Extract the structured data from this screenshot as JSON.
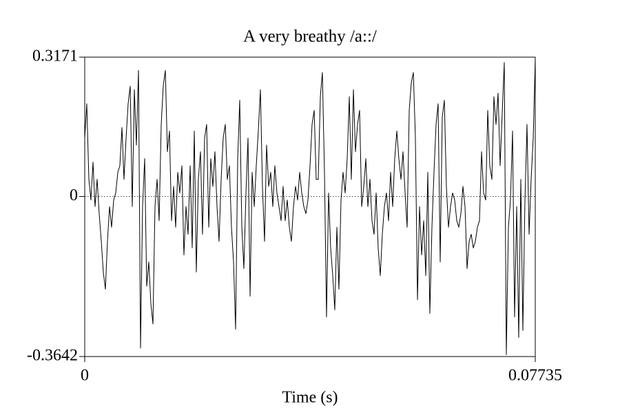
{
  "chart_data": {
    "type": "line",
    "title": "A very breathy /a::/",
    "x_label": "Time (s)",
    "color": "#000000",
    "zero_line": true,
    "xlim": [
      0,
      0.07735
    ],
    "ylim": [
      -0.3642,
      0.3171
    ],
    "xticks": [
      0,
      0.07735
    ],
    "yticks": [
      -0.3642,
      0,
      0.3171
    ],
    "x": [
      0,
      0.00035,
      0.00071,
      0.00106,
      0.00142,
      0.00177,
      0.00213,
      0.00248,
      0.00284,
      0.00319,
      0.00355,
      0.0039,
      0.00426,
      0.00461,
      0.00497,
      0.00532,
      0.00568,
      0.00603,
      0.00639,
      0.00674,
      0.0071,
      0.00745,
      0.00781,
      0.00816,
      0.00852,
      0.00887,
      0.00923,
      0.00958,
      0.00993,
      0.01029,
      0.01064,
      0.011,
      0.01135,
      0.01171,
      0.01206,
      0.01242,
      0.01277,
      0.01313,
      0.01348,
      0.01384,
      0.01419,
      0.01455,
      0.0149,
      0.01526,
      0.01561,
      0.01597,
      0.01632,
      0.01668,
      0.01703,
      0.01739,
      0.01774,
      0.0181,
      0.01845,
      0.01881,
      0.01916,
      0.01951,
      0.01987,
      0.02022,
      0.02058,
      0.02093,
      0.02129,
      0.02164,
      0.022,
      0.02235,
      0.02271,
      0.02306,
      0.02342,
      0.02377,
      0.02413,
      0.02448,
      0.02484,
      0.02519,
      0.02555,
      0.0259,
      0.02626,
      0.02661,
      0.02697,
      0.02732,
      0.02768,
      0.02803,
      0.02839,
      0.02874,
      0.0291,
      0.02945,
      0.0298,
      0.03016,
      0.03051,
      0.03087,
      0.03122,
      0.03158,
      0.03193,
      0.03229,
      0.03264,
      0.033,
      0.03335,
      0.03371,
      0.03406,
      0.03442,
      0.03477,
      0.03513,
      0.03548,
      0.03584,
      0.03619,
      0.03655,
      0.0369,
      0.03726,
      0.03761,
      0.03797,
      0.03832,
      0.03868,
      0.03903,
      0.03939,
      0.03974,
      0.04009,
      0.04045,
      0.0408,
      0.04116,
      0.04151,
      0.04187,
      0.04222,
      0.04258,
      0.04293,
      0.04329,
      0.04364,
      0.044,
      0.04435,
      0.04471,
      0.04506,
      0.04542,
      0.04577,
      0.04613,
      0.04648,
      0.04684,
      0.04719,
      0.04755,
      0.0479,
      0.04826,
      0.04861,
      0.04897,
      0.04932,
      0.04967,
      0.05003,
      0.05038,
      0.05074,
      0.05109,
      0.05145,
      0.0518,
      0.05216,
      0.05251,
      0.05287,
      0.05322,
      0.05358,
      0.05393,
      0.05429,
      0.05464,
      0.055,
      0.05535,
      0.05571,
      0.05606,
      0.05642,
      0.05677,
      0.05713,
      0.05748,
      0.05784,
      0.05819,
      0.05855,
      0.0589,
      0.05925,
      0.05961,
      0.05996,
      0.06032,
      0.06067,
      0.06103,
      0.06138,
      0.06174,
      0.06209,
      0.06245,
      0.0628,
      0.06316,
      0.06351,
      0.06387,
      0.06422,
      0.06458,
      0.06493,
      0.06529,
      0.06564,
      0.066,
      0.06635,
      0.06671,
      0.06706,
      0.06742,
      0.06777,
      0.06813,
      0.06848,
      0.06884,
      0.06919,
      0.06954,
      0.0699,
      0.07025,
      0.07061,
      0.07096,
      0.07132,
      0.07167,
      0.07203,
      0.07238,
      0.07274,
      0.07309,
      0.07345,
      0.0738,
      0.07416,
      0.07451,
      0.07487,
      0.07522,
      0.07558,
      0.07593,
      0.07629,
      0.07664,
      0.077,
      0.07735
    ],
    "values": [
      0.133,
      0.211,
      0.039,
      -0.008,
      0.078,
      -0.023,
      0.039,
      -0.039,
      -0.102,
      -0.172,
      -0.211,
      -0.102,
      -0.023,
      -0.07,
      -0.008,
      0.008,
      0.055,
      0.07,
      0.157,
      0.039,
      0.133,
      0.211,
      0.251,
      -0.023,
      0.243,
      0.117,
      0.287,
      -0.345,
      -0.023,
      0.086,
      -0.204,
      -0.149,
      -0.243,
      -0.29,
      -0.023,
      0.039,
      -0.055,
      0.164,
      0.251,
      0.287,
      0.102,
      0.149,
      -0.055,
      0.023,
      -0.07,
      0.055,
      0.008,
      0.07,
      -0.133,
      -0.023,
      -0.086,
      0.07,
      -0.117,
      0.149,
      -0.172,
      0.039,
      0.102,
      -0.086,
      0.133,
      0.164,
      -0.07,
      0.086,
      0.023,
      0.102,
      -0.023,
      -0.102,
      0.039,
      0.133,
      0.164,
      0.039,
      0.07,
      -0.07,
      -0.149,
      -0.302,
      0.086,
      0.219,
      -0.07,
      -0.164,
      0.008,
      0.133,
      -0.227,
      0.055,
      -0.023,
      0.07,
      0.149,
      0.243,
      0.023,
      -0.102,
      0.117,
      0.023,
      0.055,
      -0.023,
      0.07,
      0.008,
      -0.023,
      -0.055,
      0.023,
      -0.055,
      -0.008,
      -0.07,
      -0.102,
      -0.023,
      0.023,
      -0.008,
      0.055,
      0.008,
      -0.023,
      -0.039,
      -0.008,
      0.07,
      0.164,
      0.196,
      0.039,
      0.039,
      0.227,
      0.282,
      0.055,
      -0.274,
      0.008,
      -0.117,
      -0.18,
      -0.258,
      -0.07,
      -0.211,
      -0.008,
      0.055,
      0.008,
      0.086,
      0.227,
      0.039,
      0.243,
      0.102,
      0.164,
      0.196,
      -0.023,
      0.023,
      0.086,
      -0.023,
      0.039,
      -0.055,
      -0.086,
      0.008,
      -0.117,
      -0.18,
      -0.086,
      -0.023,
      0.008,
      -0.055,
      0.055,
      -0.023,
      0.086,
      0.149,
      0.086,
      0.039,
      0.102,
      0.008,
      -0.07,
      0.196,
      0.258,
      0.282,
      0.133,
      -0.235,
      -0.023,
      -0.133,
      -0.055,
      -0.18,
      0.055,
      -0.266,
      -0.07,
      0.055,
      0.164,
      0.211,
      -0.149,
      0.18,
      0.219,
      0.023,
      -0.07,
      -0.023,
      0.008,
      -0.008,
      -0.055,
      -0.07,
      -0.039,
      0.023,
      -0.023,
      -0.164,
      -0.102,
      -0.086,
      -0.117,
      -0.102,
      -0.07,
      -0.055,
      0.102,
      0.008,
      -0.008,
      0.196,
      0.07,
      0.039,
      0.227,
      0.164,
      0.235,
      0.07,
      0.188,
      0.305,
      -0.36,
      -0.07,
      -0.008,
      0.149,
      -0.274,
      -0.023,
      -0.321,
      0.039,
      -0.305,
      -0.008,
      0.164,
      -0.086,
      0.039,
      0.133,
      0.313
    ]
  }
}
